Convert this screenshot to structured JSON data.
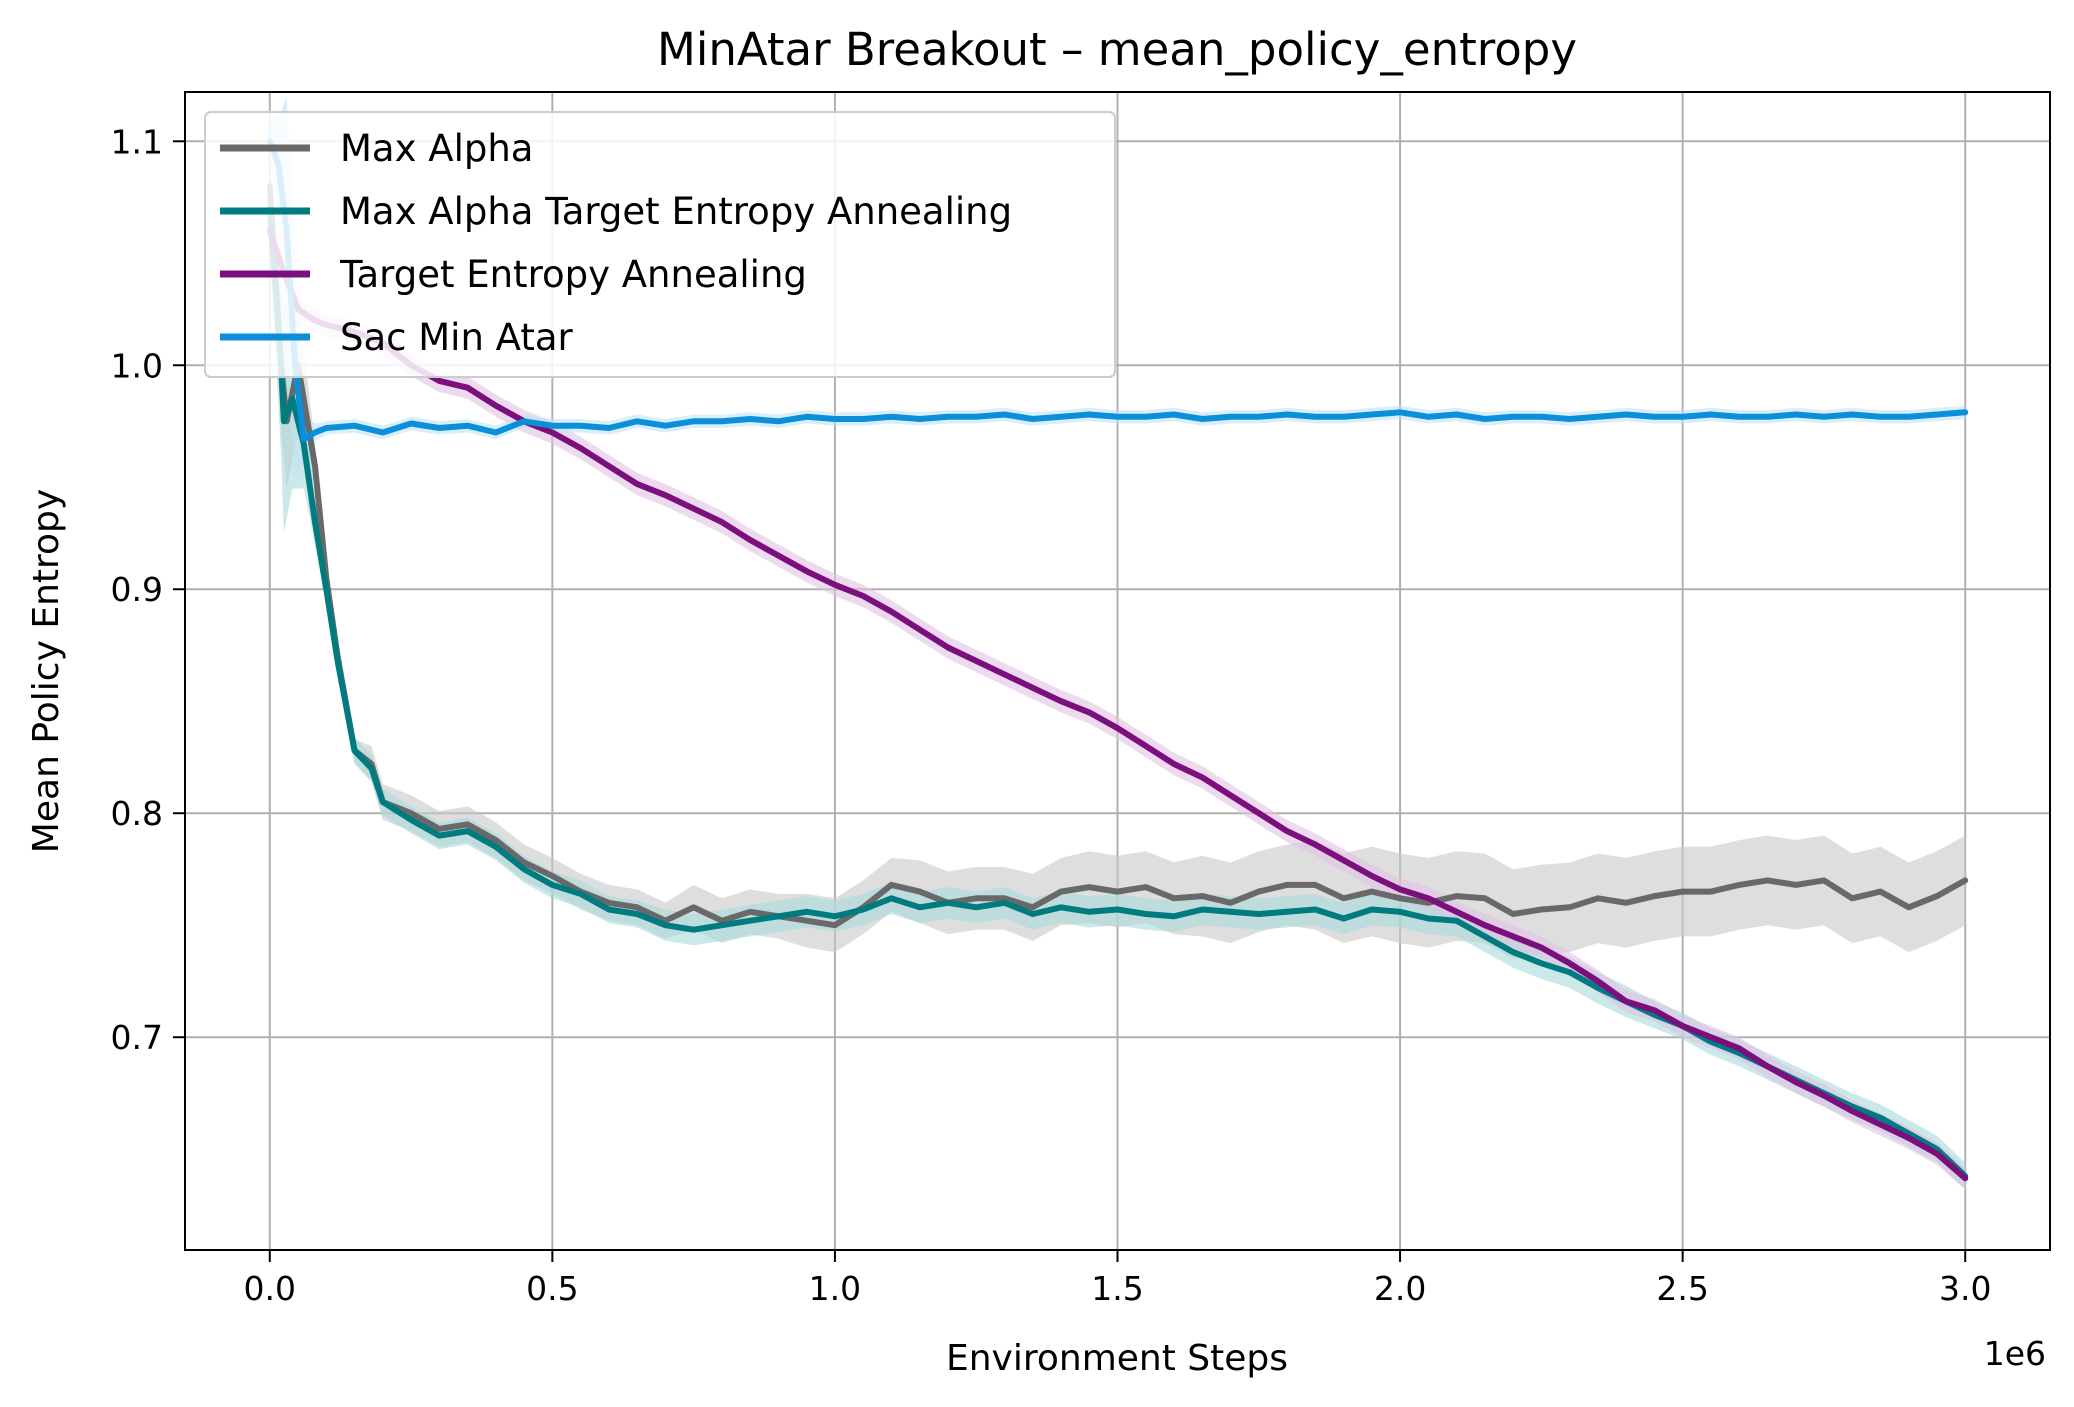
{
  "chart_data": {
    "type": "line",
    "title": "MinAtar Breakout – mean_policy_entropy",
    "xlabel": "Environment Steps",
    "ylabel": "Mean Policy Entropy",
    "x_offset_label": "1e6",
    "xlim": [
      -0.15,
      3.15
    ],
    "ylim": [
      0.605,
      1.122
    ],
    "xticks": [
      0.0,
      0.5,
      1.0,
      1.5,
      2.0,
      2.5,
      3.0
    ],
    "xtick_labels": [
      "0.0",
      "0.5",
      "1.0",
      "1.5",
      "2.0",
      "2.5",
      "3.0"
    ],
    "yticks": [
      0.7,
      0.8,
      0.9,
      1.0,
      1.1
    ],
    "ytick_labels": [
      "0.7",
      "0.8",
      "0.9",
      "1.0",
      "1.1"
    ],
    "grid": true,
    "legend_position": "upper-left",
    "series": [
      {
        "name": "Max Alpha",
        "color": "#696969",
        "band_color": "#c8c8c8",
        "x": [
          0.0,
          0.02,
          0.03,
          0.05,
          0.08,
          0.1,
          0.12,
          0.15,
          0.18,
          0.2,
          0.25,
          0.3,
          0.35,
          0.4,
          0.45,
          0.5,
          0.55,
          0.6,
          0.65,
          0.7,
          0.75,
          0.8,
          0.85,
          0.9,
          0.95,
          1.0,
          1.05,
          1.1,
          1.15,
          1.2,
          1.25,
          1.3,
          1.35,
          1.4,
          1.45,
          1.5,
          1.55,
          1.6,
          1.65,
          1.7,
          1.75,
          1.8,
          1.85,
          1.9,
          1.95,
          2.0,
          2.05,
          2.1,
          2.15,
          2.2,
          2.25,
          2.3,
          2.35,
          2.4,
          2.45,
          2.5,
          2.55,
          2.6,
          2.65,
          2.7,
          2.75,
          2.8,
          2.85,
          2.9,
          2.95,
          3.0
        ],
        "y": [
          1.08,
          1.0,
          0.975,
          1.0,
          0.955,
          0.905,
          0.87,
          0.828,
          0.822,
          0.805,
          0.8,
          0.793,
          0.795,
          0.788,
          0.778,
          0.772,
          0.765,
          0.76,
          0.758,
          0.752,
          0.758,
          0.752,
          0.756,
          0.754,
          0.752,
          0.75,
          0.758,
          0.768,
          0.765,
          0.76,
          0.762,
          0.762,
          0.758,
          0.765,
          0.767,
          0.765,
          0.767,
          0.762,
          0.763,
          0.76,
          0.765,
          0.768,
          0.768,
          0.762,
          0.765,
          0.762,
          0.76,
          0.763,
          0.762,
          0.755,
          0.757,
          0.758,
          0.762,
          0.76,
          0.763,
          0.765,
          0.765,
          0.768,
          0.77,
          0.768,
          0.77,
          0.762,
          0.765,
          0.758,
          0.763,
          0.77
        ],
        "band": [
          0.01,
          0.03,
          0.03,
          0.03,
          0.01,
          0.005,
          0.005,
          0.005,
          0.008,
          0.008,
          0.008,
          0.008,
          0.008,
          0.008,
          0.008,
          0.008,
          0.008,
          0.008,
          0.008,
          0.008,
          0.01,
          0.01,
          0.01,
          0.01,
          0.012,
          0.012,
          0.012,
          0.012,
          0.014,
          0.014,
          0.014,
          0.014,
          0.015,
          0.015,
          0.016,
          0.016,
          0.016,
          0.016,
          0.018,
          0.018,
          0.018,
          0.018,
          0.02,
          0.02,
          0.02,
          0.02,
          0.02,
          0.02,
          0.02,
          0.02,
          0.02,
          0.02,
          0.02,
          0.02,
          0.02,
          0.02,
          0.02,
          0.02,
          0.02,
          0.02,
          0.02,
          0.02,
          0.02,
          0.02,
          0.02,
          0.02
        ]
      },
      {
        "name": "Max Alpha Target Entropy Annealing",
        "color": "#007b7f",
        "band_color": "#a9dbdb",
        "x": [
          0.0,
          0.02,
          0.025,
          0.04,
          0.06,
          0.08,
          0.1,
          0.12,
          0.15,
          0.18,
          0.2,
          0.25,
          0.3,
          0.35,
          0.4,
          0.45,
          0.5,
          0.55,
          0.6,
          0.65,
          0.7,
          0.75,
          0.8,
          0.85,
          0.9,
          0.95,
          1.0,
          1.05,
          1.1,
          1.15,
          1.2,
          1.25,
          1.3,
          1.35,
          1.4,
          1.45,
          1.5,
          1.55,
          1.6,
          1.65,
          1.7,
          1.75,
          1.8,
          1.85,
          1.9,
          1.95,
          2.0,
          2.05,
          2.1,
          2.15,
          2.2,
          2.25,
          2.3,
          2.35,
          2.4,
          2.45,
          2.5,
          2.55,
          2.6,
          2.65,
          2.7,
          2.75,
          2.8,
          2.85,
          2.9,
          2.95,
          3.0
        ],
        "y": [
          1.07,
          1.0,
          0.975,
          0.985,
          0.965,
          0.93,
          0.9,
          0.868,
          0.828,
          0.82,
          0.805,
          0.797,
          0.79,
          0.792,
          0.785,
          0.775,
          0.768,
          0.764,
          0.757,
          0.755,
          0.75,
          0.748,
          0.75,
          0.752,
          0.754,
          0.756,
          0.754,
          0.757,
          0.762,
          0.758,
          0.76,
          0.758,
          0.76,
          0.755,
          0.758,
          0.756,
          0.757,
          0.755,
          0.754,
          0.757,
          0.756,
          0.755,
          0.756,
          0.757,
          0.753,
          0.757,
          0.756,
          0.753,
          0.752,
          0.745,
          0.738,
          0.733,
          0.729,
          0.722,
          0.716,
          0.71,
          0.705,
          0.698,
          0.693,
          0.687,
          0.681,
          0.675,
          0.669,
          0.664,
          0.657,
          0.65,
          0.638
        ],
        "band": [
          0.02,
          0.04,
          0.05,
          0.04,
          0.02,
          0.01,
          0.008,
          0.006,
          0.006,
          0.006,
          0.006,
          0.006,
          0.006,
          0.006,
          0.006,
          0.006,
          0.006,
          0.006,
          0.006,
          0.006,
          0.007,
          0.007,
          0.007,
          0.007,
          0.007,
          0.007,
          0.007,
          0.007,
          0.007,
          0.007,
          0.007,
          0.007,
          0.007,
          0.007,
          0.007,
          0.007,
          0.007,
          0.007,
          0.007,
          0.007,
          0.007,
          0.007,
          0.007,
          0.007,
          0.007,
          0.007,
          0.007,
          0.007,
          0.007,
          0.007,
          0.007,
          0.007,
          0.007,
          0.007,
          0.007,
          0.006,
          0.006,
          0.006,
          0.006,
          0.006,
          0.006,
          0.006,
          0.006,
          0.006,
          0.006,
          0.006,
          0.006
        ]
      },
      {
        "name": "Target Entropy Annealing",
        "color": "#7b0f7d",
        "band_color": "#e1c1e3",
        "x": [
          0.0,
          0.02,
          0.05,
          0.08,
          0.1,
          0.15,
          0.2,
          0.25,
          0.3,
          0.35,
          0.4,
          0.45,
          0.5,
          0.55,
          0.6,
          0.65,
          0.7,
          0.75,
          0.8,
          0.85,
          0.9,
          0.95,
          1.0,
          1.05,
          1.1,
          1.15,
          1.2,
          1.25,
          1.3,
          1.35,
          1.4,
          1.45,
          1.5,
          1.55,
          1.6,
          1.65,
          1.7,
          1.75,
          1.8,
          1.85,
          1.9,
          1.95,
          2.0,
          2.05,
          2.1,
          2.15,
          2.2,
          2.25,
          2.3,
          2.35,
          2.4,
          2.45,
          2.5,
          2.55,
          2.6,
          2.65,
          2.7,
          2.75,
          2.8,
          2.85,
          2.9,
          2.95,
          3.0
        ],
        "y": [
          1.06,
          1.045,
          1.025,
          1.02,
          1.018,
          1.015,
          1.01,
          1.0,
          0.993,
          0.99,
          0.982,
          0.975,
          0.97,
          0.963,
          0.955,
          0.947,
          0.942,
          0.936,
          0.93,
          0.922,
          0.915,
          0.908,
          0.902,
          0.897,
          0.89,
          0.882,
          0.874,
          0.868,
          0.862,
          0.856,
          0.85,
          0.845,
          0.838,
          0.83,
          0.822,
          0.816,
          0.808,
          0.8,
          0.792,
          0.786,
          0.779,
          0.772,
          0.766,
          0.762,
          0.756,
          0.75,
          0.745,
          0.74,
          0.733,
          0.725,
          0.716,
          0.712,
          0.705,
          0.7,
          0.695,
          0.687,
          0.68,
          0.674,
          0.667,
          0.661,
          0.655,
          0.648,
          0.637
        ],
        "band": [
          0.005,
          0.005,
          0.005,
          0.005,
          0.005,
          0.005,
          0.005,
          0.005,
          0.005,
          0.005,
          0.005,
          0.005,
          0.005,
          0.005,
          0.005,
          0.005,
          0.005,
          0.005,
          0.005,
          0.005,
          0.005,
          0.005,
          0.005,
          0.005,
          0.005,
          0.005,
          0.005,
          0.005,
          0.005,
          0.005,
          0.005,
          0.005,
          0.005,
          0.005,
          0.005,
          0.005,
          0.005,
          0.005,
          0.005,
          0.005,
          0.005,
          0.005,
          0.005,
          0.005,
          0.005,
          0.005,
          0.005,
          0.005,
          0.005,
          0.005,
          0.005,
          0.005,
          0.005,
          0.005,
          0.005,
          0.005,
          0.005,
          0.005,
          0.005,
          0.005,
          0.005,
          0.005,
          0.005
        ]
      },
      {
        "name": "Sac Min Atar",
        "color": "#0b8fd9",
        "band_color": "#bfe3f5",
        "x": [
          0.0,
          0.015,
          0.03,
          0.045,
          0.06,
          0.08,
          0.1,
          0.15,
          0.2,
          0.25,
          0.3,
          0.35,
          0.4,
          0.45,
          0.5,
          0.55,
          0.6,
          0.65,
          0.7,
          0.75,
          0.8,
          0.85,
          0.9,
          0.95,
          1.0,
          1.05,
          1.1,
          1.15,
          1.2,
          1.25,
          1.3,
          1.35,
          1.4,
          1.45,
          1.5,
          1.55,
          1.6,
          1.65,
          1.7,
          1.75,
          1.8,
          1.85,
          1.9,
          1.95,
          2.0,
          2.05,
          2.1,
          2.15,
          2.2,
          2.25,
          2.3,
          2.35,
          2.4,
          2.45,
          2.5,
          2.55,
          2.6,
          2.65,
          2.7,
          2.75,
          2.8,
          2.85,
          2.9,
          2.95,
          3.0
        ],
        "y": [
          1.1,
          1.09,
          1.06,
          1.0,
          0.967,
          0.97,
          0.972,
          0.973,
          0.97,
          0.974,
          0.972,
          0.973,
          0.97,
          0.975,
          0.973,
          0.973,
          0.972,
          0.975,
          0.973,
          0.975,
          0.975,
          0.976,
          0.975,
          0.977,
          0.976,
          0.976,
          0.977,
          0.976,
          0.977,
          0.977,
          0.978,
          0.976,
          0.977,
          0.978,
          0.977,
          0.977,
          0.978,
          0.976,
          0.977,
          0.977,
          0.978,
          0.977,
          0.977,
          0.978,
          0.979,
          0.977,
          0.978,
          0.976,
          0.977,
          0.977,
          0.976,
          0.977,
          0.978,
          0.977,
          0.977,
          0.978,
          0.977,
          0.977,
          0.978,
          0.977,
          0.978,
          0.977,
          0.977,
          0.978,
          0.979
        ],
        "band": [
          0.01,
          0.02,
          0.06,
          0.05,
          0.01,
          0.004,
          0.003,
          0.003,
          0.003,
          0.003,
          0.003,
          0.003,
          0.003,
          0.003,
          0.003,
          0.003,
          0.003,
          0.003,
          0.003,
          0.003,
          0.003,
          0.003,
          0.003,
          0.003,
          0.003,
          0.003,
          0.003,
          0.003,
          0.003,
          0.003,
          0.003,
          0.003,
          0.003,
          0.003,
          0.003,
          0.003,
          0.003,
          0.003,
          0.003,
          0.003,
          0.003,
          0.003,
          0.003,
          0.003,
          0.003,
          0.003,
          0.003,
          0.003,
          0.003,
          0.003,
          0.003,
          0.003,
          0.003,
          0.003,
          0.003,
          0.003,
          0.003,
          0.003,
          0.003,
          0.003,
          0.003,
          0.003,
          0.003,
          0.003,
          0.003
        ]
      }
    ]
  }
}
